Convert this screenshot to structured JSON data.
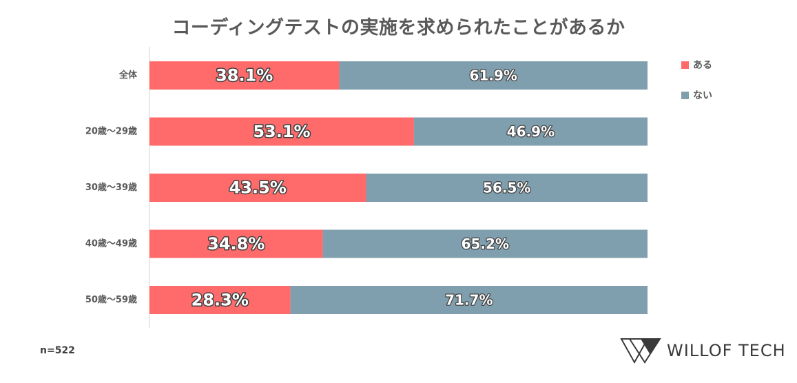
{
  "chart_data": {
    "type": "bar",
    "orientation": "horizontal",
    "stacked": true,
    "percent": true,
    "title": "コーディングテストの実施を求められたことがあるか",
    "categories": [
      "全体",
      "20歳〜29歳",
      "30歳〜39歳",
      "40歳〜49歳",
      "50歳〜59歳"
    ],
    "series": [
      {
        "name": "ある",
        "color": "#ff6b6b",
        "values": [
          38.1,
          53.1,
          43.5,
          34.8,
          28.3
        ],
        "labels": [
          "38.1%",
          "53.1%",
          "43.5%",
          "34.8%",
          "28.3%"
        ]
      },
      {
        "name": "ない",
        "color": "#809fae",
        "values": [
          61.9,
          46.9,
          56.5,
          65.2,
          71.7
        ],
        "labels": [
          "61.9%",
          "46.9%",
          "56.5%",
          "65.2%",
          "71.7%"
        ]
      }
    ],
    "xlim": [
      0,
      100
    ],
    "legend_position": "top-right",
    "grid": false
  },
  "footer": {
    "sample_note": "n=522",
    "brand": "WILLOF TECH"
  }
}
